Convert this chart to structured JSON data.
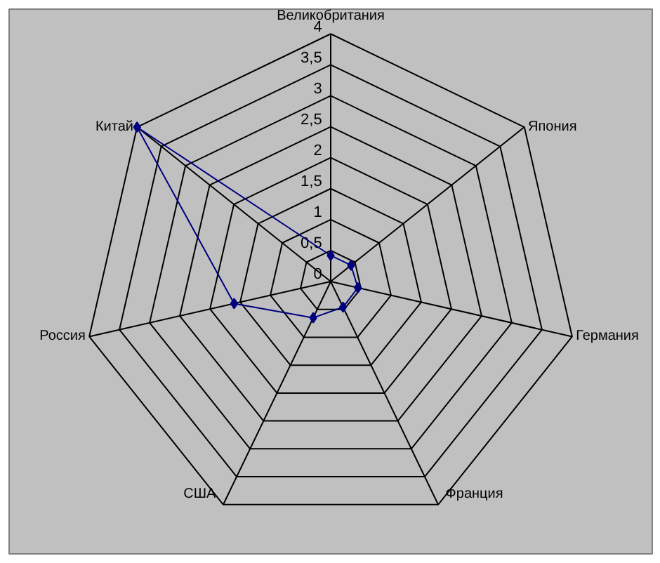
{
  "chart_data": {
    "type": "radar",
    "categories": [
      "Великобритания",
      "Япония",
      "Германия",
      "Франция",
      "США",
      "Россия",
      "Китай"
    ],
    "series": [
      {
        "color": "#000080",
        "values": [
          0.42,
          0.42,
          0.45,
          0.46,
          0.65,
          1.6,
          4.0
        ]
      }
    ],
    "ylim": [
      0,
      4
    ],
    "yticks": [
      {
        "value": 0,
        "label": "0"
      },
      {
        "value": 0.5,
        "label": "0,5"
      },
      {
        "value": 1,
        "label": "1"
      },
      {
        "value": 1.5,
        "label": "1,5"
      },
      {
        "value": 2,
        "label": "2"
      },
      {
        "value": 2.5,
        "label": "2,5"
      },
      {
        "value": 3,
        "label": "3"
      },
      {
        "value": 3.5,
        "label": "3,5"
      },
      {
        "value": 4,
        "label": "4"
      }
    ],
    "grid": true,
    "marker": "diamond",
    "line_style": "solid"
  }
}
